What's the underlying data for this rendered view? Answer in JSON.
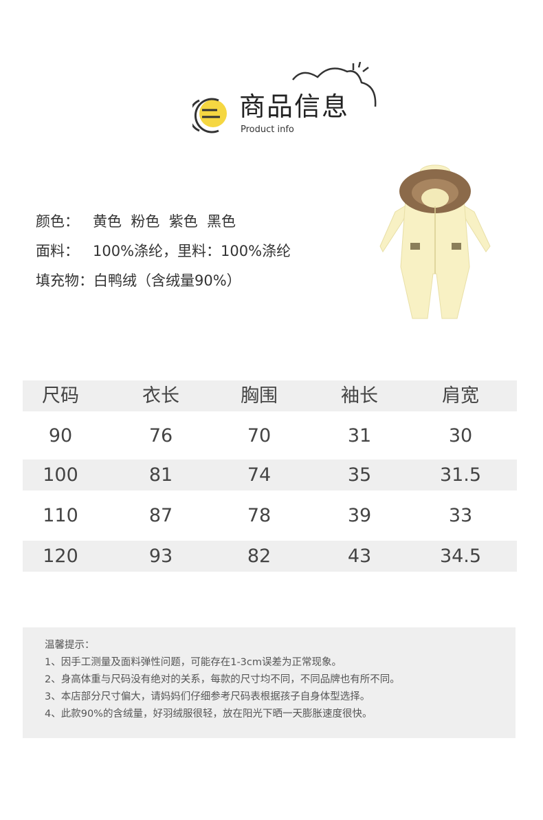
{
  "header": {
    "title": "商品信息",
    "subtitle": "Product info",
    "accent": "#f5d742"
  },
  "specs": [
    {
      "label": "颜色：",
      "value": "黄色  粉色  紫色  黑色"
    },
    {
      "label": "面料：",
      "value": "100%涤纶，里料：100%涤纶"
    },
    {
      "label": "填充物：",
      "value": "白鸭绒（含绒量90%）"
    }
  ],
  "product_image": {
    "description_icon": "yellow-snowsuit-image",
    "color": "#f8f1c4"
  },
  "size_table": {
    "headers": [
      "尺码",
      "衣长",
      "胸围",
      "袖长",
      "肩宽"
    ],
    "rows": [
      [
        "90",
        "76",
        "70",
        "31",
        "30"
      ],
      [
        "100",
        "81",
        "74",
        "35",
        "31.5"
      ],
      [
        "110",
        "87",
        "78",
        "39",
        "33"
      ],
      [
        "120",
        "93",
        "82",
        "43",
        "34.5"
      ]
    ]
  },
  "notes": {
    "title": "温馨提示：",
    "items": [
      "1、因手工测量及面料弹性问题，可能存在1-3cm误差为正常现象。",
      "2、身高体重与尺码没有绝对的关系，每款的尺寸均不同，不同品牌也有所不同。",
      "3、本店部分尺寸偏大，请妈妈们仔细参考尺码表根据孩子自身体型选择。",
      "4、此款90%的含绒量，好羽绒服很轻，放在阳光下晒一天膨胀速度很快。"
    ]
  }
}
